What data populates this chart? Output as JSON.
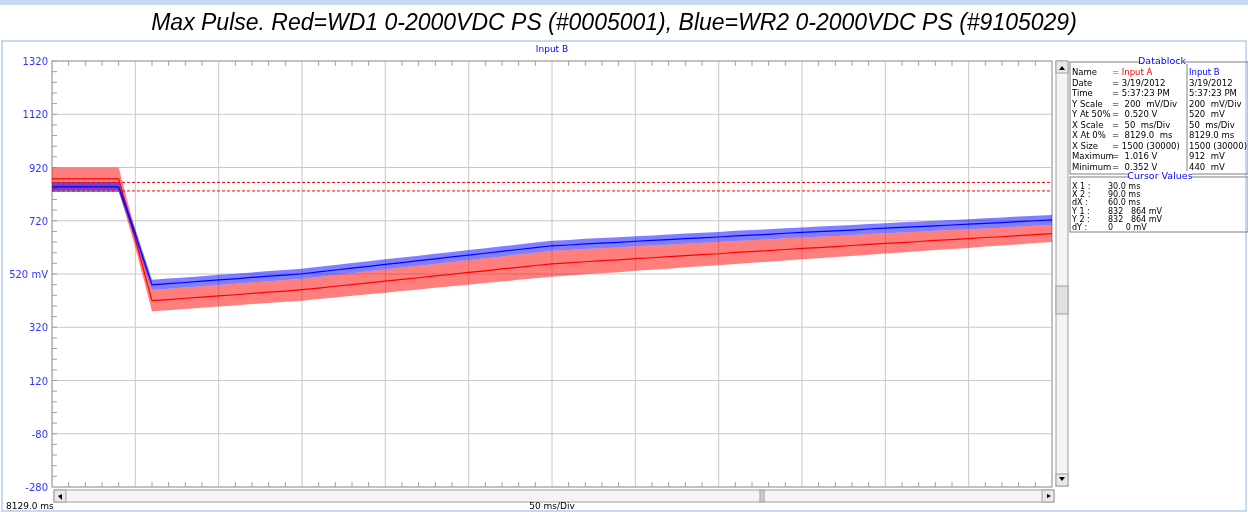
{
  "chart_data": {
    "type": "line",
    "title": "Max Pulse. Red=WD1 0-2000VDC PS (#0005001), Blue=WR2 0-2000VDC PS (#9105029)",
    "xlabel": "50 ms/Div",
    "categories": [
      null,
      null,
      null,
      null,
      null,
      null,
      null,
      null,
      null,
      null,
      null,
      null,
      null,
      null,
      null,
      null,
      null,
      null,
      null,
      null,
      null,
      null,
      null,
      null,
      null,
      null,
      null,
      null,
      null,
      null,
      null,
      null,
      null,
      null,
      null,
      null,
      null,
      null,
      null,
      null,
      null,
      null,
      null,
      null,
      null,
      null,
      null,
      null,
      null,
      null,
      null,
      null,
      null,
      null,
      null,
      null,
      null,
      null,
      null,
      null,
      null
    ],
    "ylim": [
      -280,
      1320
    ],
    "yticks": [
      -280,
      -80,
      120,
      320,
      {
        "value": 520,
        "label": "520 mV"
      },
      720,
      920,
      1120,
      1320
    ],
    "grid": true,
    "marker": "none",
    "line_style": "solid",
    "series": [
      {
        "color": "#ff0000",
        "values": [
          877,
          877,
          877,
          877,
          877,
          650,
          420,
          424,
          429,
          433,
          438,
          442,
          447,
          452,
          456,
          461,
          467,
          474,
          480,
          487,
          493,
          500,
          506,
          513,
          519,
          526,
          532,
          539,
          545,
          552,
          558,
          562,
          566,
          570,
          573,
          578,
          581,
          585,
          589,
          593,
          596,
          601,
          604,
          608,
          612,
          616,
          619,
          623,
          627,
          631,
          635,
          638,
          642,
          646,
          649,
          653,
          657,
          660,
          664,
          668,
          672
        ],
        "lower": [
          835,
          835,
          835,
          835,
          835,
          620,
          380,
          384,
          389,
          393,
          398,
          402,
          407,
          411,
          416,
          420,
          426,
          432,
          438,
          444,
          450,
          456,
          462,
          468,
          474,
          480,
          486,
          492,
          498,
          504,
          510,
          514,
          519,
          523,
          527,
          532,
          536,
          540,
          545,
          549,
          553,
          558,
          562,
          566,
          571,
          575,
          579,
          584,
          588,
          592,
          597,
          601,
          605,
          610,
          614,
          618,
          623,
          627,
          631,
          636,
          640
        ],
        "upper": [
          920,
          920,
          920,
          920,
          920,
          680,
          460,
          465,
          469,
          474,
          479,
          483,
          488,
          493,
          497,
          502,
          509,
          516,
          523,
          530,
          537,
          544,
          551,
          558,
          565,
          572,
          579,
          586,
          593,
          600,
          607,
          610,
          614,
          617,
          620,
          624,
          627,
          630,
          634,
          637,
          640,
          644,
          647,
          650,
          654,
          657,
          660,
          663,
          666,
          670,
          673,
          676,
          679,
          682,
          685,
          688,
          691,
          694,
          698,
          701,
          704
        ]
      },
      {
        "color": "#0000ff",
        "values": [
          847,
          847,
          847,
          847,
          847,
          670,
          479,
          484,
          488,
          493,
          498,
          502,
          507,
          512,
          516,
          521,
          528,
          535,
          542,
          549,
          556,
          563,
          570,
          577,
          584,
          591,
          598,
          605,
          612,
          619,
          626,
          629,
          633,
          636,
          639,
          643,
          646,
          649,
          653,
          656,
          659,
          663,
          666,
          669,
          673,
          676,
          679,
          682,
          685,
          689,
          692,
          695,
          698,
          701,
          704,
          707,
          710,
          713,
          717,
          720,
          723
        ],
        "lower": [
          828,
          828,
          828,
          828,
          828,
          650,
          460,
          465,
          469,
          474,
          479,
          483,
          488,
          493,
          497,
          502,
          509,
          516,
          523,
          530,
          537,
          544,
          551,
          558,
          565,
          572,
          579,
          586,
          593,
          600,
          607,
          610,
          614,
          617,
          620,
          624,
          627,
          630,
          634,
          637,
          640,
          644,
          647,
          650,
          654,
          657,
          660,
          663,
          666,
          670,
          673,
          676,
          679,
          682,
          685,
          688,
          691,
          694,
          698,
          701,
          704
        ],
        "upper": [
          866,
          866,
          866,
          866,
          866,
          690,
          498,
          503,
          507,
          512,
          517,
          521,
          526,
          531,
          535,
          540,
          547,
          554,
          561,
          568,
          575,
          582,
          589,
          596,
          603,
          610,
          617,
          624,
          631,
          638,
          645,
          648,
          652,
          655,
          658,
          662,
          665,
          668,
          672,
          675,
          678,
          682,
          685,
          688,
          692,
          695,
          698,
          701,
          704,
          708,
          711,
          714,
          717,
          720,
          723,
          726,
          729,
          732,
          736,
          739,
          742
        ]
      }
    ],
    "ref_lines": [
      {
        "axis": "y",
        "value": 864,
        "color": "#ff0000",
        "line_style": "dashed"
      },
      {
        "axis": "y",
        "value": 832,
        "color": "#ff0000",
        "line_style": "dashed"
      }
    ],
    "annotations": [
      "Input B",
      "8129.0 ms",
      "Datablock",
      "Name",
      "Date",
      "Time",
      "Y Scale",
      "Y At 50%",
      "X Scale",
      "X At 0%",
      "X Size",
      "Maximum",
      "Minimum",
      "= Input A",
      "= 3/19/2012",
      "= 5:37:23 PM",
      "=  200  mV/Div",
      "=  0.520 V",
      "=  50  ms/Div",
      "=  8129.0  ms",
      "= 1500 (30000)",
      "=  1.016 V",
      "=  0.352 V",
      "Input B",
      "3/19/2012",
      "5:37:23 PM",
      "200  mV/Div",
      "520  mV",
      "50  ms/Div",
      "8129.0 ms",
      "1500 (30000)",
      "912  mV",
      "440  mV",
      "Cursor Values",
      "X 1 :",
      "X 2 :",
      "dX :",
      "Y 1 :",
      "Y 2 :",
      "dY :",
      "30.0 ms",
      "90.0 ms",
      "60.0 ms",
      "832   864 mV",
      "832   864 mV",
      "0     0 mV"
    ]
  }
}
